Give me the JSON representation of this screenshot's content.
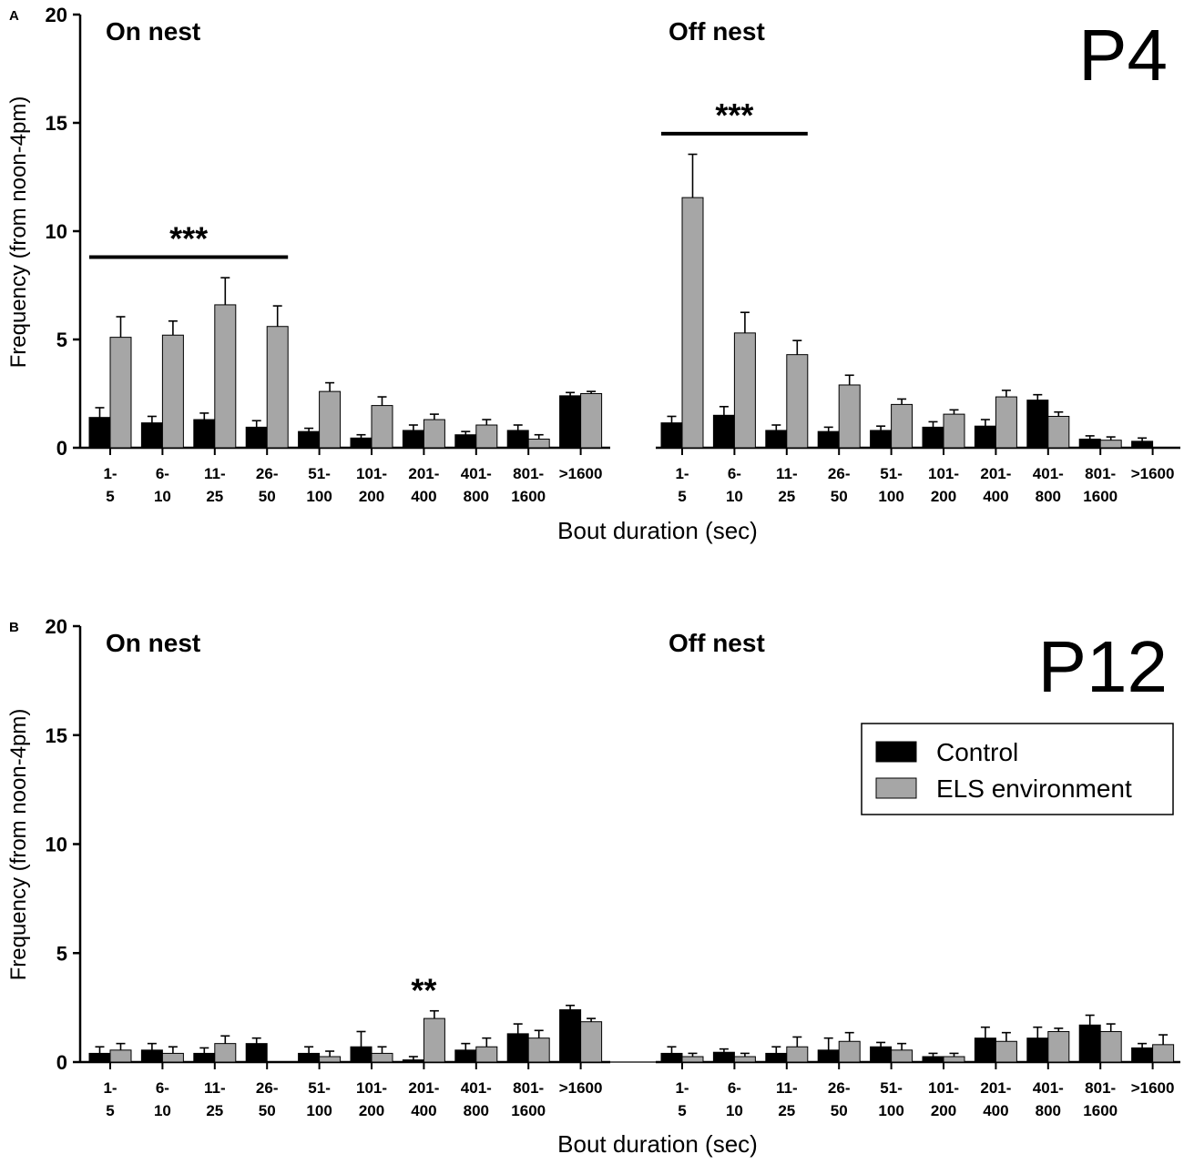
{
  "colors": {
    "control": "#000000",
    "els": "#a6a6a6",
    "axis": "#000000"
  },
  "chart_data": [
    {
      "type": "bar",
      "panel_label": "A",
      "age_label": "P4",
      "xlabel": "Bout duration (sec)",
      "ylabel": "Frequency (from noon-4pm)",
      "ylim": [
        0,
        20
      ],
      "yticks": [
        "0",
        "5",
        "10",
        "15",
        "20"
      ],
      "groups": [
        {
          "title": "On nest",
          "categories": [
            [
              "1-",
              "5"
            ],
            [
              "6-",
              "10"
            ],
            [
              "11-",
              "25"
            ],
            [
              "26-",
              "50"
            ],
            [
              "51-",
              "100"
            ],
            [
              "101-",
              "200"
            ],
            [
              "201-",
              "400"
            ],
            [
              "401-",
              "800"
            ],
            [
              "801-",
              "1600"
            ],
            [
              ">1600",
              ""
            ]
          ],
          "series": [
            {
              "name": "Control",
              "values": [
                1.4,
                1.15,
                1.3,
                0.95,
                0.75,
                0.45,
                0.8,
                0.6,
                0.8,
                2.4
              ],
              "errors": [
                0.45,
                0.3,
                0.3,
                0.3,
                0.15,
                0.15,
                0.25,
                0.15,
                0.25,
                0.15
              ]
            },
            {
              "name": "ELS environment",
              "values": [
                5.1,
                5.2,
                6.6,
                5.6,
                2.6,
                1.95,
                1.3,
                1.05,
                0.4,
                2.5
              ],
              "errors": [
                0.95,
                0.65,
                1.25,
                0.95,
                0.4,
                0.4,
                0.25,
                0.25,
                0.2,
                0.1
              ]
            }
          ],
          "significance": {
            "label": "***",
            "from_category": 0,
            "to_category": 3,
            "bar_y": 8.8
          }
        },
        {
          "title": "Off nest",
          "categories": [
            [
              "1-",
              "5"
            ],
            [
              "6-",
              "10"
            ],
            [
              "11-",
              "25"
            ],
            [
              "26-",
              "50"
            ],
            [
              "51-",
              "100"
            ],
            [
              "101-",
              "200"
            ],
            [
              "201-",
              "400"
            ],
            [
              "401-",
              "800"
            ],
            [
              "801-",
              "1600"
            ],
            [
              ">1600",
              ""
            ]
          ],
          "series": [
            {
              "name": "Control",
              "values": [
                1.15,
                1.5,
                0.8,
                0.75,
                0.8,
                0.95,
                1.0,
                2.2,
                0.4,
                0.3
              ],
              "errors": [
                0.3,
                0.4,
                0.25,
                0.2,
                0.2,
                0.25,
                0.3,
                0.25,
                0.15,
                0.15
              ]
            },
            {
              "name": "ELS environment",
              "values": [
                11.55,
                5.3,
                4.3,
                2.9,
                2.0,
                1.55,
                2.35,
                1.45,
                0.35,
                0.0
              ],
              "errors": [
                2.0,
                0.95,
                0.65,
                0.45,
                0.25,
                0.2,
                0.3,
                0.2,
                0.15,
                0.0
              ]
            }
          ],
          "significance": {
            "label": "***",
            "from_category": 0,
            "to_category": 2,
            "bar_y": 14.5
          }
        }
      ]
    },
    {
      "type": "bar",
      "panel_label": "B",
      "age_label": "P12",
      "xlabel": "Bout duration (sec)",
      "ylabel": "Frequency (from noon-4pm)",
      "ylim": [
        0,
        20
      ],
      "yticks": [
        "0",
        "5",
        "10",
        "15",
        "20"
      ],
      "legend": {
        "placement": "right",
        "entries": [
          "Control",
          "ELS environment"
        ]
      },
      "groups": [
        {
          "title": "On nest",
          "categories": [
            [
              "1-",
              "5"
            ],
            [
              "6-",
              "10"
            ],
            [
              "11-",
              "25"
            ],
            [
              "26-",
              "50"
            ],
            [
              "51-",
              "100"
            ],
            [
              "101-",
              "200"
            ],
            [
              "201-",
              "400"
            ],
            [
              "401-",
              "800"
            ],
            [
              "801-",
              "1600"
            ],
            [
              ">1600",
              ""
            ]
          ],
          "series": [
            {
              "name": "Control",
              "values": [
                0.4,
                0.55,
                0.4,
                0.85,
                0.4,
                0.7,
                0.1,
                0.55,
                1.3,
                2.4
              ],
              "errors": [
                0.3,
                0.3,
                0.25,
                0.25,
                0.3,
                0.7,
                0.15,
                0.3,
                0.45,
                0.2
              ]
            },
            {
              "name": "ELS environment",
              "values": [
                0.55,
                0.4,
                0.85,
                0.0,
                0.25,
                0.4,
                2.0,
                0.7,
                1.1,
                1.85
              ],
              "errors": [
                0.3,
                0.3,
                0.35,
                0.0,
                0.25,
                0.3,
                0.35,
                0.4,
                0.35,
                0.15
              ]
            }
          ],
          "significance": {
            "label": "**",
            "category": 6
          }
        },
        {
          "title": "Off nest",
          "categories": [
            [
              "1-",
              "5"
            ],
            [
              "6-",
              "10"
            ],
            [
              "11-",
              "25"
            ],
            [
              "26-",
              "50"
            ],
            [
              "51-",
              "100"
            ],
            [
              "101-",
              "200"
            ],
            [
              "201-",
              "400"
            ],
            [
              "401-",
              "800"
            ],
            [
              "801-",
              "1600"
            ],
            [
              ">1600",
              ""
            ]
          ],
          "series": [
            {
              "name": "Control",
              "values": [
                0.4,
                0.45,
                0.4,
                0.55,
                0.7,
                0.25,
                1.1,
                1.1,
                1.7,
                0.65
              ],
              "errors": [
                0.3,
                0.15,
                0.3,
                0.55,
                0.2,
                0.15,
                0.5,
                0.5,
                0.45,
                0.2
              ]
            },
            {
              "name": "ELS environment",
              "values": [
                0.25,
                0.25,
                0.7,
                0.95,
                0.55,
                0.25,
                0.95,
                1.4,
                1.4,
                0.8
              ],
              "errors": [
                0.15,
                0.15,
                0.45,
                0.4,
                0.3,
                0.15,
                0.4,
                0.15,
                0.35,
                0.45
              ]
            }
          ]
        }
      ]
    }
  ]
}
